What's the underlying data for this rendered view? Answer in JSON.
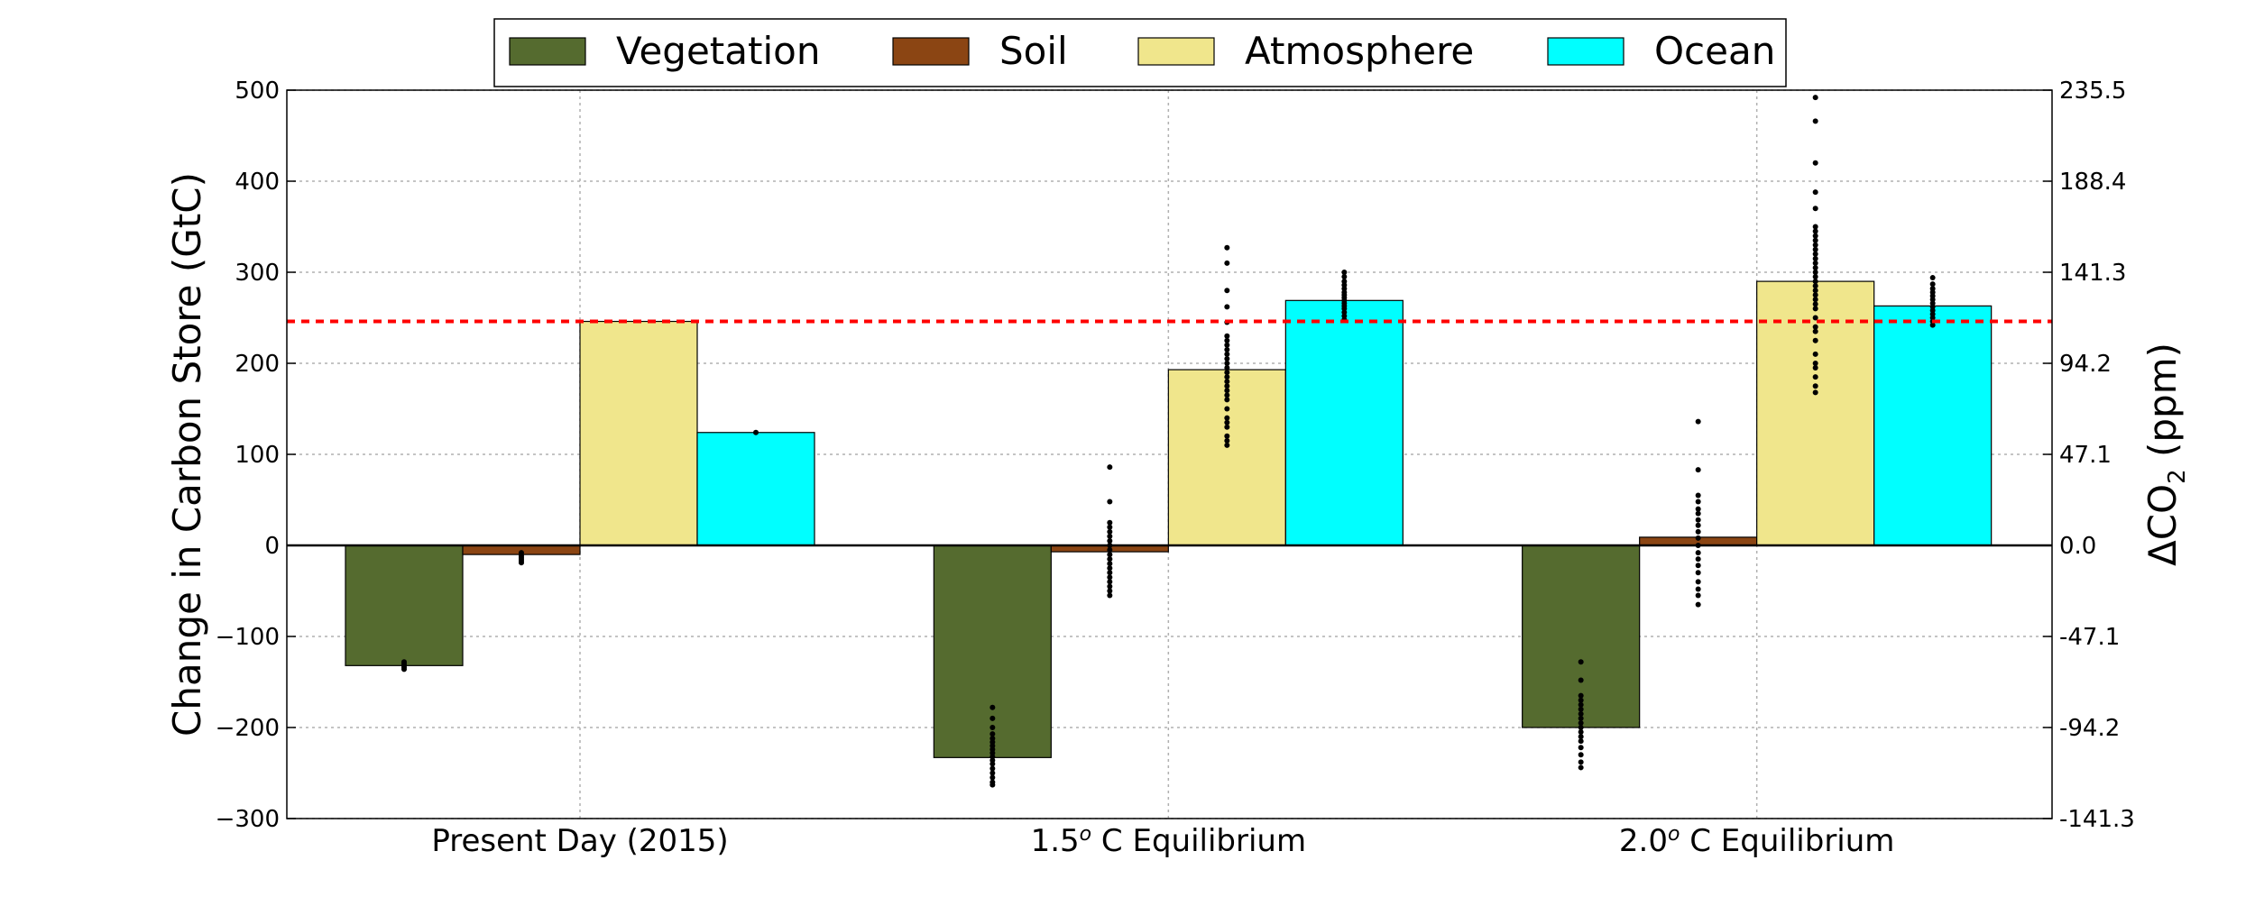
{
  "chart_data": {
    "type": "bar",
    "categories": [
      "Present Day (2015)",
      "1.5° C Equilibrium",
      "2.0° C Equilibrium"
    ],
    "category_labels": [
      {
        "pre": "Present Day (2015)",
        "sup": "",
        "post": ""
      },
      {
        "pre": "1.5",
        "sup": "o",
        "post": " C Equilibrium"
      },
      {
        "pre": "2.0",
        "sup": "o",
        "post": " C Equilibrium"
      }
    ],
    "series": [
      {
        "name": "Vegetation",
        "color": "#556b2f",
        "values": [
          -132,
          -233,
          -200
        ],
        "points": [
          [
            -128,
            -130,
            -132,
            -134,
            -136
          ],
          [
            -178,
            -190,
            -200,
            -207,
            -212,
            -216,
            -220,
            -224,
            -228,
            -232,
            -236,
            -240,
            -245,
            -250,
            -255,
            -260,
            -263
          ],
          [
            -128,
            -148,
            -165,
            -170,
            -175,
            -180,
            -185,
            -190,
            -195,
            -200,
            -205,
            -210,
            -215,
            -222,
            -230,
            -238,
            -244
          ]
        ]
      },
      {
        "name": "Soil",
        "color": "#8b4513",
        "values": [
          -10,
          -7,
          9
        ],
        "points": [
          [
            -8,
            -11,
            -13,
            -15,
            -17,
            -19
          ],
          [
            86,
            48,
            25,
            20,
            15,
            10,
            5,
            0,
            -5,
            -10,
            -15,
            -20,
            -25,
            -30,
            -35,
            -40,
            -45,
            -50,
            -55
          ],
          [
            136,
            83,
            55,
            48,
            40,
            35,
            28,
            22,
            15,
            8,
            0,
            -8,
            -15,
            -22,
            -30,
            -40,
            -48,
            -55,
            -65
          ]
        ]
      },
      {
        "name": "Atmosphere",
        "color": "#f0e68c",
        "values": [
          246,
          193,
          290
        ],
        "points": [
          [],
          [
            327,
            310,
            280,
            262,
            245,
            230,
            225,
            220,
            215,
            210,
            205,
            200,
            195,
            190,
            185,
            180,
            175,
            170,
            165,
            160,
            150,
            140,
            135,
            130,
            120,
            115,
            110
          ],
          [
            492,
            466,
            420,
            388,
            370,
            350,
            345,
            340,
            335,
            330,
            325,
            320,
            315,
            310,
            305,
            300,
            295,
            290,
            285,
            280,
            275,
            270,
            265,
            260,
            250,
            240,
            235,
            225,
            210,
            200,
            195,
            185,
            175,
            168
          ]
        ]
      },
      {
        "name": "Ocean",
        "color": "#00ffff",
        "values": [
          124,
          269,
          263
        ],
        "points": [
          [
            124
          ],
          [
            300,
            295,
            290,
            286,
            282,
            278,
            275,
            272,
            269,
            266,
            263,
            260,
            256,
            252,
            248
          ],
          [
            294,
            287,
            282,
            278,
            274,
            270,
            266,
            262,
            258,
            254,
            250,
            246,
            242
          ]
        ]
      }
    ],
    "ylabel": "Change in Carbon Store (GtC)",
    "ylim": [
      -300,
      500
    ],
    "yticks": [
      -300,
      -200,
      -100,
      0,
      100,
      200,
      300,
      400,
      500
    ],
    "ytick_labels": [
      "−300",
      "−200",
      "−100",
      "0",
      "100",
      "200",
      "300",
      "400",
      "500"
    ],
    "y2label": "ΔCO₂ (ppm)",
    "y2label_parts": {
      "pre": "ΔCO",
      "sub": "2",
      "post": "  (ppm)"
    },
    "y2tick_labels": [
      "-141.3",
      "-94.2",
      "-47.1",
      "0.0",
      "47.1",
      "94.2",
      "141.3",
      "188.4",
      "235.5"
    ],
    "reference_line": {
      "value": 246,
      "color": "#ff0000",
      "style": "dashed"
    },
    "grid": true,
    "legend_position": "top-center"
  }
}
